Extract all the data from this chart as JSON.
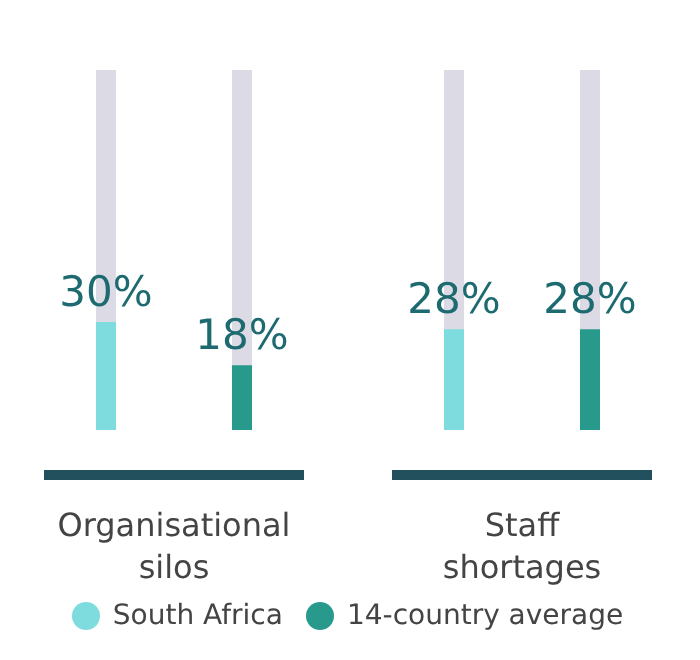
{
  "chart_data": {
    "type": "bar",
    "categories": [
      "Organisational silos",
      "Staff shortages"
    ],
    "series": [
      {
        "name": "South Africa",
        "color": "#7fdcde",
        "values": [
          30,
          28
        ],
        "value_labels": [
          "30%",
          "28%"
        ]
      },
      {
        "name": "14-country average",
        "color": "#289a8c",
        "values": [
          18,
          28
        ],
        "value_labels": [
          "18%",
          "28%"
        ]
      }
    ],
    "ylim": [
      0,
      100
    ],
    "legend": "bottom"
  }
}
